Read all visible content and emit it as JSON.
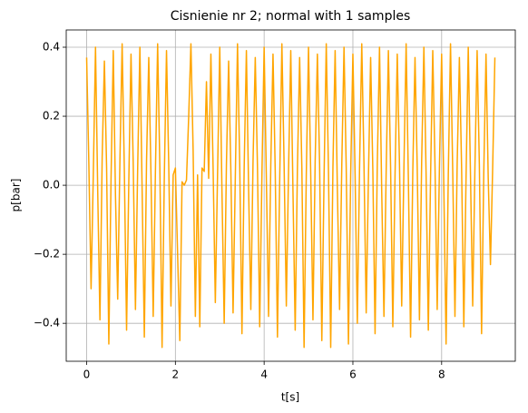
{
  "chart_data": {
    "type": "line",
    "title": "Cisnienie nr 2; normal with 1 samples",
    "xlabel": "t[s]",
    "ylabel": "p[bar]",
    "x": [
      0,
      0.05,
      0.1,
      0.15,
      0.2,
      0.25,
      0.3,
      0.35,
      0.4,
      0.45,
      0.5,
      0.55,
      0.6,
      0.65,
      0.7,
      0.75,
      0.8,
      0.85,
      0.9,
      0.95,
      1,
      1.05,
      1.1,
      1.15,
      1.2,
      1.25,
      1.3,
      1.35,
      1.4,
      1.45,
      1.5,
      1.55,
      1.6,
      1.65,
      1.7,
      1.75,
      1.8,
      1.85,
      1.9,
      1.95,
      2,
      2.05,
      2.1,
      2.15,
      2.2,
      2.25,
      2.3,
      2.35,
      2.4,
      2.45,
      2.5,
      2.55,
      2.6,
      2.65,
      2.7,
      2.75,
      2.8,
      2.85,
      2.9,
      2.95,
      3,
      3.05,
      3.1,
      3.15,
      3.2,
      3.25,
      3.3,
      3.35,
      3.4,
      3.45,
      3.5,
      3.55,
      3.6,
      3.65,
      3.7,
      3.75,
      3.8,
      3.85,
      3.9,
      3.95,
      4,
      4.05,
      4.1,
      4.15,
      4.2,
      4.25,
      4.3,
      4.35,
      4.4,
      4.45,
      4.5,
      4.55,
      4.6,
      4.65,
      4.7,
      4.75,
      4.8,
      4.85,
      4.9,
      4.95,
      5,
      5.05,
      5.1,
      5.15,
      5.2,
      5.25,
      5.3,
      5.35,
      5.4,
      5.45,
      5.5,
      5.55,
      5.6,
      5.65,
      5.7,
      5.75,
      5.8,
      5.85,
      5.9,
      5.95,
      6,
      6.05,
      6.1,
      6.15,
      6.2,
      6.25,
      6.3,
      6.35,
      6.4,
      6.45,
      6.5,
      6.55,
      6.6,
      6.65,
      6.7,
      6.75,
      6.8,
      6.85,
      6.9,
      6.95,
      7,
      7.05,
      7.1,
      7.15,
      7.2,
      7.25,
      7.3,
      7.35,
      7.4,
      7.45,
      7.5,
      7.55,
      7.6,
      7.65,
      7.7,
      7.75,
      7.8,
      7.85,
      7.9,
      7.95,
      8,
      8.05,
      8.1,
      8.15,
      8.2,
      8.25,
      8.3,
      8.35,
      8.4,
      8.45,
      8.5,
      8.55,
      8.6,
      8.65,
      8.7,
      8.75,
      8.8,
      8.85,
      8.9,
      8.95,
      9,
      9.05,
      9.1,
      9.15,
      9.2
    ],
    "series": [
      {
        "name": "p",
        "color": "#ffa500",
        "values": [
          0.37,
          0.06,
          -0.3,
          0.03,
          0.4,
          -0.02,
          -0.39,
          0.08,
          0.36,
          0.05,
          -0.46,
          0.02,
          0.39,
          -0.03,
          -0.33,
          0.07,
          0.41,
          0.04,
          -0.42,
          0.01,
          0.38,
          0.06,
          -0.36,
          0.05,
          0.4,
          -0.01,
          -0.44,
          0.07,
          0.37,
          0.03,
          -0.38,
          0.04,
          0.41,
          0.05,
          -0.47,
          0.02,
          0.39,
          0.06,
          -0.35,
          0.03,
          0.05,
          -0.2,
          -0.45,
          0.01,
          0.0,
          0.015,
          0.2,
          0.41,
          0.1,
          -0.38,
          0.03,
          -0.41,
          0.05,
          0.04,
          0.3,
          0.02,
          0.38,
          0.05,
          -0.34,
          0.03,
          0.4,
          -0.02,
          -0.4,
          0.06,
          0.36,
          0.04,
          -0.37,
          0.02,
          0.41,
          0.06,
          -0.43,
          0.05,
          0.39,
          -0.01,
          -0.36,
          0.07,
          0.37,
          0.05,
          -0.41,
          0.03,
          0.4,
          0.02,
          -0.38,
          0.06,
          0.38,
          0.04,
          -0.44,
          0.01,
          0.41,
          0.06,
          -0.35,
          0.04,
          0.39,
          -0.02,
          -0.42,
          0.05,
          0.37,
          0.05,
          -0.47,
          0.03,
          0.4,
          0.03,
          -0.39,
          0.07,
          0.38,
          0.06,
          -0.45,
          0.02,
          0.41,
          0.04,
          -0.47,
          0.05,
          0.39,
          -0.01,
          -0.36,
          0.06,
          0.4,
          0.05,
          -0.46,
          0.03,
          0.38,
          0.03,
          -0.4,
          0.05,
          0.41,
          0.06,
          -0.37,
          0.02,
          0.37,
          0.04,
          -0.43,
          0.06,
          0.4,
          -0.02,
          -0.38,
          0.04,
          0.39,
          0.05,
          -0.41,
          0.03,
          0.38,
          0.06,
          -0.35,
          0.05,
          0.41,
          0.02,
          -0.44,
          0.04,
          0.37,
          0.05,
          -0.39,
          0.07,
          0.4,
          0.03,
          -0.42,
          0.02,
          0.39,
          0.06,
          -0.36,
          0.05,
          0.38,
          -0.01,
          -0.46,
          0.03,
          0.41,
          0.04,
          -0.38,
          0.06,
          0.37,
          0.05,
          -0.41,
          0.02,
          0.4,
          0.03,
          -0.35,
          0.05,
          0.39,
          0.06,
          -0.43,
          0.04,
          0.38,
          0.02,
          -0.23,
          0.05,
          0.37
        ]
      }
    ],
    "xlim": [
      -0.46,
      9.66
    ],
    "xticks": [
      0,
      2,
      4,
      6,
      8
    ],
    "ylim": [
      -0.51,
      0.45
    ],
    "yticks": [
      {
        "value": -0.4,
        "label": "−0.4"
      },
      {
        "value": -0.2,
        "label": "−0.2"
      },
      {
        "value": 0,
        "label": "0.0"
      },
      0.2,
      0.4
    ],
    "grid": true
  }
}
